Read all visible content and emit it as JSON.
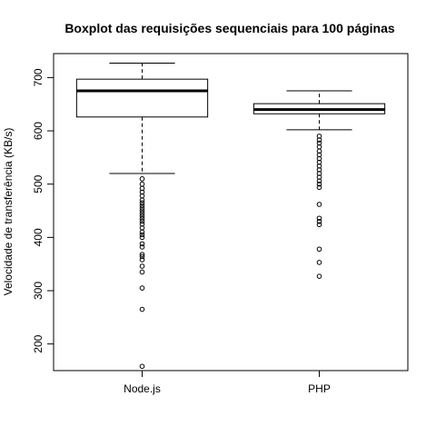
{
  "chart_data": {
    "type": "boxplot",
    "title": "Boxplot das requisições sequenciais para 100 páginas",
    "xlabel": "",
    "ylabel": "Velocidade de transferência (KB/s)",
    "ylim": [
      150,
      745
    ],
    "yticks": [
      200,
      300,
      400,
      500,
      600,
      700
    ],
    "categories": [
      "Node.js",
      "PHP"
    ],
    "boxes": [
      {
        "name": "Node.js",
        "whisker_low": 520,
        "q1": 626,
        "median": 675,
        "q3": 697,
        "whisker_high": 727,
        "outliers": [
          510,
          500,
          492,
          485,
          478,
          470,
          465,
          460,
          455,
          450,
          445,
          440,
          435,
          430,
          425,
          418,
          410,
          405,
          400,
          388,
          382,
          368,
          364,
          358,
          346,
          335,
          305,
          265,
          158
        ]
      },
      {
        "name": "PHP",
        "whisker_low": 602,
        "q1": 632,
        "median": 640,
        "q3": 651,
        "whisker_high": 675,
        "outliers": [
          590,
          583,
          577,
          570,
          562,
          555,
          548,
          541,
          534,
          527,
          520,
          513,
          506,
          500,
          494,
          462,
          436,
          430,
          424,
          378,
          353,
          327
        ]
      }
    ]
  }
}
